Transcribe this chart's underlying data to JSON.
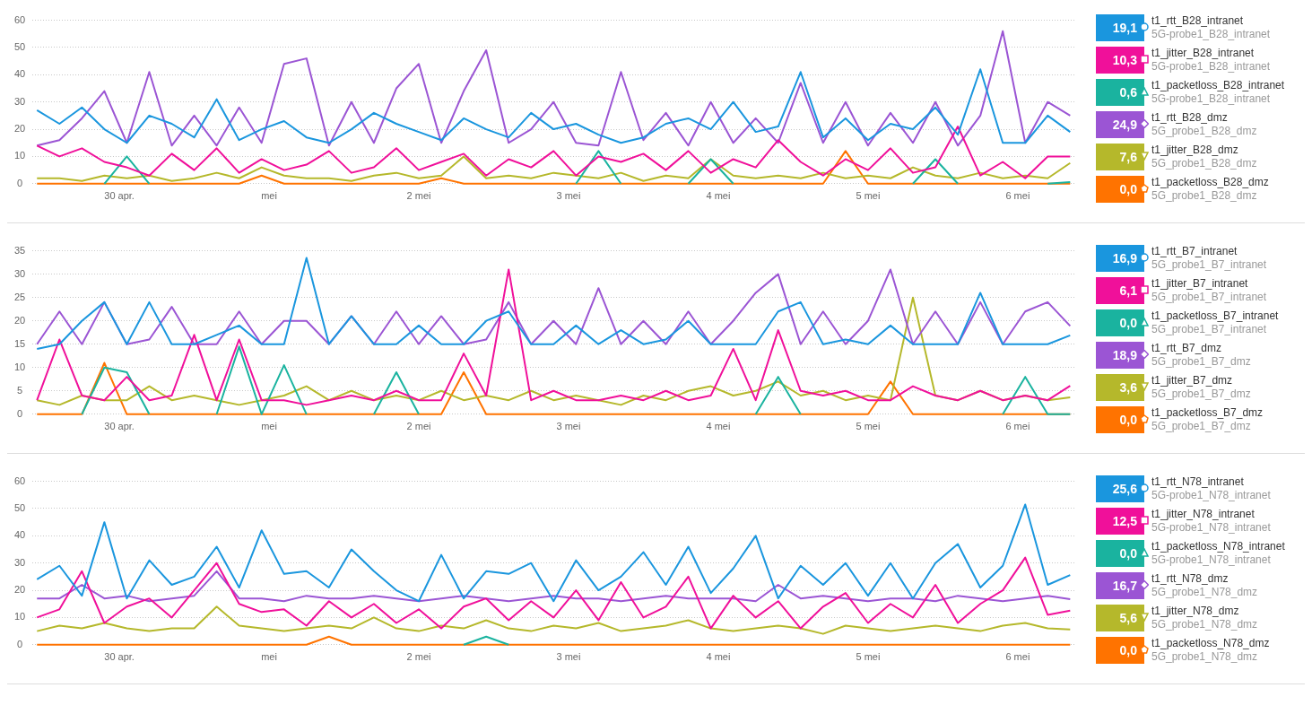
{
  "chart_data": [
    {
      "type": "line",
      "x": [
        -0.55,
        -0.4,
        -0.25,
        -0.1,
        0.05,
        0.2,
        0.35,
        0.5,
        0.65,
        0.8,
        0.95,
        1.1,
        1.25,
        1.4,
        1.55,
        1.7,
        1.85,
        2.0,
        2.15,
        2.3,
        2.45,
        2.6,
        2.75,
        2.9,
        3.05,
        3.2,
        3.35,
        3.5,
        3.65,
        3.8,
        3.95,
        4.1,
        4.25,
        4.4,
        4.55,
        4.7,
        4.85,
        5.0,
        5.15,
        5.3,
        5.45,
        5.6,
        5.75,
        5.9,
        6.05,
        6.2,
        6.35
      ],
      "xlim": [
        -0.58,
        6.39
      ],
      "xticks": [
        {
          "value": 0,
          "label": "30 apr."
        },
        {
          "value": 1,
          "label": "mei"
        },
        {
          "value": 2,
          "label": "2 mei"
        },
        {
          "value": 3,
          "label": "3 mei"
        },
        {
          "value": 4,
          "label": "4 mei"
        },
        {
          "value": 5,
          "label": "5 mei"
        },
        {
          "value": 6,
          "label": "6 mei"
        }
      ],
      "ylim": [
        0,
        60
      ],
      "yticks": [
        0,
        10,
        20,
        30,
        40,
        50,
        60
      ],
      "grid": "y",
      "legend": "right",
      "marker": "none",
      "annotations": [
        "19,1",
        "5G-probe1_B28_intranet",
        "10,3",
        "5G-probe1_B28_intranet",
        "0,6",
        "5G-probe1_B28_intranet",
        "24,9",
        "5G_probe1_B28_dmz",
        "7,6",
        "5G_probe1_B28_dmz",
        "0,0",
        "5G_probe1_B28_dmz"
      ],
      "series": [
        {
          "name": "t1_rtt_B28_intranet",
          "color": "#1a96de",
          "values": [
            27,
            22,
            28,
            20,
            15,
            25,
            22,
            17,
            31,
            16,
            20,
            23,
            17,
            15,
            20,
            26,
            22,
            19,
            16,
            24,
            20,
            17,
            26,
            20,
            22,
            18,
            15,
            17,
            22,
            24,
            20,
            30,
            19,
            21,
            41,
            17,
            24,
            16,
            22,
            20,
            28,
            18,
            42,
            15,
            15,
            25,
            19
          ]
        },
        {
          "name": "t1_jitter_B28_intranet",
          "color": "#f0109a",
          "values": [
            14,
            10,
            13,
            8,
            6,
            3,
            11,
            5,
            13,
            4,
            9,
            5,
            7,
            12,
            4,
            6,
            13,
            5,
            8,
            11,
            3,
            9,
            6,
            12,
            3,
            10,
            8,
            11,
            5,
            12,
            4,
            9,
            6,
            16,
            8,
            3,
            9,
            5,
            13,
            4,
            6,
            21,
            3,
            8,
            2,
            10,
            10
          ]
        },
        {
          "name": "t1_packetloss_B28_intranet",
          "color": "#1ab39f",
          "values": [
            null,
            null,
            null,
            0,
            10,
            0,
            null,
            null,
            null,
            null,
            null,
            null,
            null,
            null,
            null,
            null,
            null,
            null,
            null,
            null,
            null,
            null,
            null,
            null,
            0,
            12,
            0,
            null,
            null,
            0,
            9,
            0,
            null,
            null,
            null,
            null,
            null,
            null,
            null,
            0,
            9,
            0,
            null,
            null,
            null,
            0,
            0.6
          ]
        },
        {
          "name": "t1_rtt_B28_dmz",
          "color": "#9b55d4",
          "values": [
            14,
            16,
            24,
            34,
            15,
            41,
            14,
            25,
            14,
            28,
            15,
            44,
            46,
            14,
            30,
            15,
            35,
            44,
            15,
            34,
            49,
            15,
            20,
            30,
            15,
            14,
            41,
            16,
            26,
            14,
            30,
            15,
            24,
            15,
            37,
            15,
            30,
            14,
            26,
            15,
            30,
            14,
            25,
            56,
            15,
            30,
            25
          ]
        },
        {
          "name": "t1_jitter_B28_dmz",
          "color": "#b5b82b",
          "values": [
            2,
            2,
            1,
            3,
            2,
            3,
            1,
            2,
            4,
            2,
            6,
            3,
            2,
            2,
            1,
            3,
            4,
            2,
            3,
            10,
            2,
            3,
            2,
            4,
            3,
            2,
            4,
            1,
            3,
            2,
            9,
            3,
            2,
            3,
            2,
            4,
            2,
            3,
            2,
            6,
            3,
            2,
            4,
            2,
            3,
            2,
            7.6
          ]
        },
        {
          "name": "t1_packetloss_B28_dmz",
          "color": "#ff7300",
          "values": [
            0,
            0,
            0,
            0,
            0,
            0,
            0,
            0,
            0,
            0,
            3,
            0,
            0,
            0,
            0,
            0,
            0,
            0,
            2,
            0,
            0,
            0,
            0,
            0,
            0,
            0,
            0,
            0,
            0,
            0,
            0,
            0,
            0,
            0,
            0,
            0,
            12,
            0,
            0,
            0,
            0,
            0,
            0,
            0,
            0,
            0,
            0
          ]
        }
      ]
    },
    {
      "type": "line",
      "x": [
        -0.55,
        -0.4,
        -0.25,
        -0.1,
        0.05,
        0.2,
        0.35,
        0.5,
        0.65,
        0.8,
        0.95,
        1.1,
        1.25,
        1.4,
        1.55,
        1.7,
        1.85,
        2.0,
        2.15,
        2.3,
        2.45,
        2.6,
        2.75,
        2.9,
        3.05,
        3.2,
        3.35,
        3.5,
        3.65,
        3.8,
        3.95,
        4.1,
        4.25,
        4.4,
        4.55,
        4.7,
        4.85,
        5.0,
        5.15,
        5.3,
        5.45,
        5.6,
        5.75,
        5.9,
        6.05,
        6.2,
        6.35
      ],
      "xlim": [
        -0.58,
        6.39
      ],
      "xticks": [
        {
          "value": 0,
          "label": "30 apr."
        },
        {
          "value": 1,
          "label": "mei"
        },
        {
          "value": 2,
          "label": "2 mei"
        },
        {
          "value": 3,
          "label": "3 mei"
        },
        {
          "value": 4,
          "label": "4 mei"
        },
        {
          "value": 5,
          "label": "5 mei"
        },
        {
          "value": 6,
          "label": "6 mei"
        }
      ],
      "ylim": [
        0,
        35
      ],
      "yticks": [
        0,
        5,
        10,
        15,
        20,
        25,
        30,
        35
      ],
      "grid": "y",
      "legend": "right",
      "marker": "none",
      "annotations": [
        "16,9",
        "5G_probe1_B7_intranet",
        "6,1",
        "5G_probe1_B7_intranet",
        "0,0",
        "5G_probe1_B7_intranet",
        "18,9",
        "5G_probe1_B7_dmz",
        "3,6",
        "5G_probe1_B7_dmz",
        "0,0",
        "5G_probe1_B7_dmz"
      ],
      "series": [
        {
          "name": "t1_rtt_B7_intranet",
          "color": "#1a96de",
          "values": [
            14,
            15,
            20,
            24,
            15,
            24,
            15,
            15,
            17,
            19,
            15,
            15,
            33.5,
            15,
            21,
            15,
            15,
            19,
            15,
            15,
            20,
            22,
            15,
            15,
            19,
            15,
            18,
            15,
            16,
            20,
            15,
            15,
            15,
            22,
            24,
            15,
            16,
            15,
            19,
            15,
            15,
            15,
            26,
            15,
            15,
            15,
            16.9
          ]
        },
        {
          "name": "t1_jitter_B7_intranet",
          "color": "#f0109a",
          "values": [
            3,
            16,
            4,
            3,
            8,
            3,
            4,
            17,
            3,
            16,
            3,
            3,
            2,
            3,
            4,
            3,
            5,
            3,
            3,
            13,
            4,
            31,
            3,
            5,
            3,
            3,
            4,
            3,
            5,
            3,
            4,
            14,
            3,
            18,
            5,
            4,
            5,
            3,
            3,
            6,
            4,
            3,
            5,
            3,
            4,
            3,
            6.1
          ]
        },
        {
          "name": "t1_packetloss_B7_intranet",
          "color": "#1ab39f",
          "values": [
            null,
            null,
            0,
            10,
            9,
            0,
            null,
            null,
            0,
            14.5,
            0,
            10.5,
            0,
            null,
            null,
            0,
            9,
            0,
            null,
            null,
            null,
            null,
            null,
            null,
            null,
            null,
            null,
            null,
            null,
            null,
            null,
            null,
            0,
            8,
            0,
            null,
            null,
            null,
            null,
            null,
            null,
            null,
            null,
            0,
            8,
            0,
            0
          ]
        },
        {
          "name": "t1_rtt_B7_dmz",
          "color": "#9b55d4",
          "values": [
            15,
            22,
            15,
            24,
            15,
            16,
            23,
            15,
            15,
            22,
            15,
            20,
            20,
            15,
            21,
            15,
            22,
            15,
            21,
            15,
            16,
            24,
            15,
            20,
            15,
            27,
            15,
            20,
            15,
            22,
            15,
            20,
            26,
            30,
            15,
            22,
            15,
            20,
            31,
            15,
            22,
            15,
            24,
            15,
            22,
            24,
            18.9
          ]
        },
        {
          "name": "t1_jitter_B7_dmz",
          "color": "#b5b82b",
          "values": [
            3,
            2,
            4,
            3,
            3,
            6,
            3,
            4,
            3,
            2,
            3,
            4,
            6,
            3,
            5,
            3,
            4,
            3,
            5,
            3,
            4,
            3,
            5,
            3,
            4,
            3,
            2,
            4,
            3,
            5,
            6,
            4,
            5,
            7,
            4,
            5,
            3,
            4,
            3,
            25,
            4,
            3,
            5,
            3,
            4,
            3,
            3.6
          ]
        },
        {
          "name": "t1_packetloss_B7_dmz",
          "color": "#ff7300",
          "values": [
            0,
            0,
            0,
            11,
            0,
            0,
            0,
            0,
            0,
            0,
            0,
            0,
            0,
            0,
            0,
            0,
            0,
            0,
            0,
            9,
            0,
            0,
            0,
            0,
            0,
            0,
            0,
            0,
            0,
            0,
            0,
            0,
            0,
            0,
            0,
            0,
            0,
            0,
            7,
            0,
            0,
            0,
            0,
            0,
            0,
            0,
            0
          ]
        }
      ]
    },
    {
      "type": "line",
      "x": [
        -0.55,
        -0.4,
        -0.25,
        -0.1,
        0.05,
        0.2,
        0.35,
        0.5,
        0.65,
        0.8,
        0.95,
        1.1,
        1.25,
        1.4,
        1.55,
        1.7,
        1.85,
        2.0,
        2.15,
        2.3,
        2.45,
        2.6,
        2.75,
        2.9,
        3.05,
        3.2,
        3.35,
        3.5,
        3.65,
        3.8,
        3.95,
        4.1,
        4.25,
        4.4,
        4.55,
        4.7,
        4.85,
        5.0,
        5.15,
        5.3,
        5.45,
        5.6,
        5.75,
        5.9,
        6.05,
        6.2,
        6.35
      ],
      "xlim": [
        -0.58,
        6.39
      ],
      "xticks": [
        {
          "value": 0,
          "label": "30 apr."
        },
        {
          "value": 1,
          "label": "mei"
        },
        {
          "value": 2,
          "label": "2 mei"
        },
        {
          "value": 3,
          "label": "3 mei"
        },
        {
          "value": 4,
          "label": "4 mei"
        },
        {
          "value": 5,
          "label": "5 mei"
        },
        {
          "value": 6,
          "label": "6 mei"
        }
      ],
      "ylim": [
        0,
        60
      ],
      "yticks": [
        0,
        10,
        20,
        30,
        40,
        50,
        60
      ],
      "grid": "y",
      "legend": "right",
      "marker": "none",
      "annotations": [
        "25,6",
        "5G-probe1_N78_intranet",
        "12,5",
        "5G-probe1_N78_intranet",
        "0,0",
        "5G-probe1_N78_intranet",
        "16,7",
        "5G_probe1_N78_dmz",
        "5,6",
        "5G_probe1_N78_dmz",
        "0,0",
        "5G_probe1_N78_dmz"
      ],
      "series": [
        {
          "name": "t1_rtt_N78_intranet",
          "color": "#1a96de",
          "values": [
            24,
            29,
            18,
            45,
            17,
            31,
            22,
            25,
            36,
            21,
            42,
            26,
            27,
            21,
            35,
            27,
            20,
            16,
            33,
            17,
            27,
            26,
            30,
            16,
            31,
            20,
            25,
            34,
            22,
            36,
            19,
            28,
            40,
            17,
            29,
            22,
            30,
            18,
            30,
            17,
            30,
            37,
            21,
            29,
            51.5,
            22,
            25.6
          ]
        },
        {
          "name": "t1_jitter_N78_intranet",
          "color": "#f0109a",
          "values": [
            10,
            13,
            27,
            8,
            14,
            17,
            10,
            20,
            30,
            15,
            12,
            13,
            7,
            16,
            10,
            15,
            8,
            13,
            6,
            14,
            17,
            9,
            16,
            10,
            20,
            9,
            23,
            10,
            14,
            25,
            6,
            18,
            10,
            16,
            6,
            14,
            19,
            8,
            15,
            10,
            22,
            8,
            15,
            20,
            32,
            11,
            12.5
          ]
        },
        {
          "name": "t1_packetloss_N78_intranet",
          "color": "#1ab39f",
          "values": [
            null,
            null,
            null,
            null,
            null,
            null,
            null,
            null,
            null,
            null,
            null,
            null,
            null,
            null,
            null,
            null,
            null,
            null,
            null,
            0,
            3,
            0,
            null,
            null,
            null,
            null,
            null,
            null,
            null,
            null,
            null,
            null,
            null,
            null,
            null,
            null,
            null,
            null,
            null,
            null,
            null,
            null,
            null,
            null,
            null,
            null,
            null
          ]
        },
        {
          "name": "t1_rtt_N78_dmz",
          "color": "#9b55d4",
          "values": [
            17,
            17,
            22,
            17,
            18,
            16,
            17,
            18,
            27,
            17,
            17,
            16,
            18,
            17,
            17,
            18,
            17,
            16,
            17,
            18,
            17,
            16,
            17,
            18,
            17,
            17,
            16,
            17,
            18,
            17,
            17,
            17,
            16,
            22,
            17,
            18,
            17,
            16,
            17,
            17,
            16,
            18,
            17,
            16,
            17,
            18,
            16.7
          ]
        },
        {
          "name": "t1_jitter_N78_dmz",
          "color": "#b5b82b",
          "values": [
            5,
            7,
            6,
            8,
            6,
            5,
            6,
            6,
            14,
            7,
            6,
            5,
            6,
            7,
            6,
            10,
            6,
            5,
            7,
            6,
            9,
            6,
            5,
            7,
            6,
            8,
            5,
            6,
            7,
            9,
            6,
            5,
            6,
            7,
            6,
            4,
            7,
            6,
            5,
            6,
            7,
            6,
            5,
            7,
            8,
            6,
            5.6
          ]
        },
        {
          "name": "t1_packetloss_N78_dmz",
          "color": "#ff7300",
          "values": [
            0,
            0,
            0,
            0,
            0,
            0,
            0,
            0,
            0,
            0,
            0,
            0,
            0,
            3,
            0,
            0,
            0,
            0,
            0,
            0,
            0,
            0,
            0,
            0,
            0,
            0,
            0,
            0,
            0,
            0,
            0,
            0,
            0,
            0,
            0,
            0,
            0,
            0,
            0,
            0,
            0,
            0,
            0,
            0,
            0,
            0,
            0
          ]
        }
      ]
    }
  ]
}
